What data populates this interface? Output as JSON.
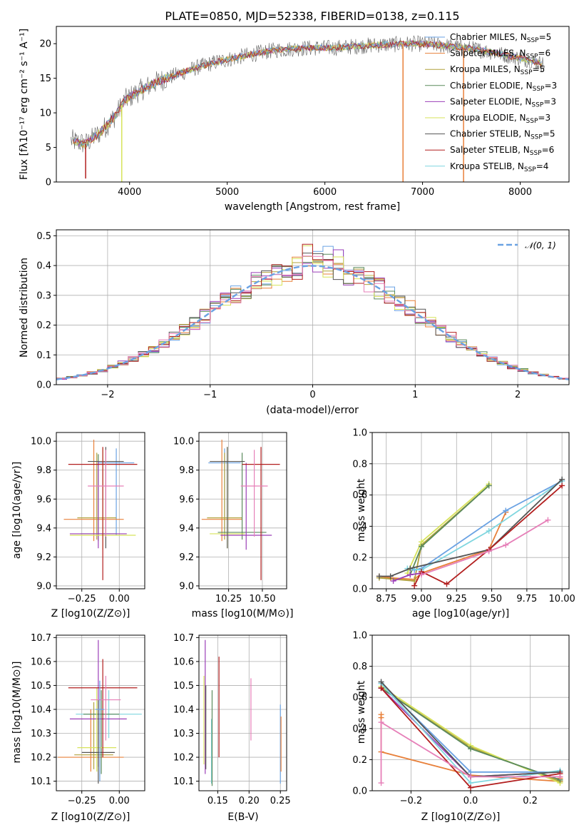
{
  "colors": {
    "chabrier_miles": "#6aa2e3",
    "salpeter_miles": "#e8803a",
    "kroupa_miles": "#b1a13c",
    "chabrier_elodie": "#5a8a5c",
    "salpeter_elodie": "#9b3fb8",
    "kroupa_elodie": "#d7e35a",
    "chabrier_stelib": "#555555",
    "salpeter_stelib": "#b21e1e",
    "kroupa_stelib": "#7fd6df",
    "pink": "#e67fb8"
  },
  "chart_data": [
    {
      "id": "spectrum",
      "type": "line",
      "title": "PLATE=0850, MJD=52338, FIBERID=0138, z=0.115",
      "xlabel": "wavelength [Angstrom, rest frame]",
      "ylabel": "Flux [fλ10⁻¹⁷ erg cm⁻² s⁻¹ A⁻¹]",
      "xlim": [
        3250,
        8500
      ],
      "ylim": [
        0,
        22.5
      ],
      "xticks": [
        "4000",
        "5000",
        "6000",
        "7000",
        "8000"
      ],
      "yticks": [
        "0",
        "5",
        "10",
        "15",
        "20"
      ],
      "grid": false,
      "legend_position": "right",
      "legend": [
        {
          "name": "Chabrier MILES",
          "n": "5",
          "color_key": "chabrier_miles"
        },
        {
          "name": "Salpeter MILES",
          "n": "6",
          "color_key": "salpeter_miles"
        },
        {
          "name": "Kroupa MILES",
          "n": "5",
          "color_key": "kroupa_miles"
        },
        {
          "name": "Chabrier ELODIE",
          "n": "3",
          "color_key": "chabrier_elodie"
        },
        {
          "name": "Salpeter ELODIE",
          "n": "3",
          "color_key": "salpeter_elodie"
        },
        {
          "name": "Kroupa ELODIE",
          "n": "3",
          "color_key": "kroupa_elodie"
        },
        {
          "name": "Chabrier STELIB",
          "n": "5",
          "color_key": "chabrier_stelib"
        },
        {
          "name": "Salpeter STELIB",
          "n": "6",
          "color_key": "salpeter_stelib"
        },
        {
          "name": "Kroupa STELIB",
          "n": "4",
          "color_key": "kroupa_stelib"
        }
      ],
      "continuum": {
        "x": [
          3400,
          3550,
          3700,
          3850,
          3950,
          4100,
          4300,
          4500,
          4700,
          4900,
          5100,
          5300,
          5500,
          5700,
          5900,
          6100,
          6300,
          6500,
          6700,
          6900,
          7100,
          7300,
          7500,
          7700,
          7900,
          8100,
          8250
        ],
        "y": [
          6.0,
          5.5,
          7.2,
          9.5,
          11.8,
          13.2,
          14.6,
          15.6,
          16.6,
          17.4,
          18.0,
          18.6,
          19.1,
          19.3,
          19.4,
          19.4,
          19.6,
          19.8,
          19.9,
          20.0,
          19.9,
          19.6,
          19.3,
          18.8,
          18.2,
          17.6,
          17.0
        ]
      },
      "dips": [
        {
          "x": 3550,
          "y": 0.5
        },
        {
          "x": 3920,
          "y": 0
        },
        {
          "x": 6800,
          "y": 0
        },
        {
          "x": 7420,
          "y": 0
        }
      ]
    },
    {
      "id": "residuals",
      "type": "bar",
      "xlabel": "(data-model)/error",
      "ylabel": "Normed distribution",
      "xlim": [
        -2.5,
        2.5
      ],
      "ylim": [
        0,
        0.52
      ],
      "xticks": [
        "−2",
        "−1",
        "0",
        "1",
        "2"
      ],
      "yticks": [
        "0.0",
        "0.1",
        "0.2",
        "0.3",
        "0.4",
        "0.5"
      ],
      "grid": true,
      "legend_position": "top-right",
      "legend": [
        {
          "name": "𝒩(0, 1)",
          "style": "dashed",
          "color_key": "chabrier_miles"
        }
      ],
      "bin_width": 0.1
    },
    {
      "id": "age_vs_Z",
      "type": "scatter",
      "xlabel": "Z [log10(Z/Z⊙)]",
      "ylabel": "age  [log10(age/yr)]",
      "xlim": [
        -0.42,
        0.17
      ],
      "ylim": [
        8.98,
        10.06
      ],
      "xticks": [
        "−0.25",
        "0.00"
      ],
      "yticks": [
        "9.0",
        "9.2",
        "9.4",
        "9.6",
        "9.8",
        "10.0"
      ],
      "grid": true,
      "points": [
        {
          "x": -0.02,
          "y": 9.85,
          "ex": 0.12,
          "eylo": 0.5,
          "eyhi": 0.1,
          "color_key": "chabrier_miles"
        },
        {
          "x": -0.17,
          "y": 9.46,
          "ex": 0.2,
          "eylo": 0.15,
          "eyhi": 0.55,
          "color_key": "salpeter_miles"
        },
        {
          "x": -0.15,
          "y": 9.47,
          "ex": 0.13,
          "eylo": 0.15,
          "eyhi": 0.45,
          "color_key": "kroupa_miles"
        },
        {
          "x": -0.14,
          "y": 9.36,
          "ex": 0.12,
          "eylo": 0.05,
          "eyhi": 0.55,
          "color_key": "chabrier_elodie"
        },
        {
          "x": -0.14,
          "y": 9.36,
          "ex": 0.19,
          "eylo": 0.1,
          "eyhi": 0.5,
          "color_key": "salpeter_elodie"
        },
        {
          "x": -0.11,
          "y": 9.35,
          "ex": 0.22,
          "eylo": 0.1,
          "eyhi": 0.6,
          "color_key": "kroupa_elodie"
        },
        {
          "x": -0.09,
          "y": 9.86,
          "ex": 0.12,
          "eylo": 0.6,
          "eyhi": 0.1,
          "color_key": "chabrier_stelib"
        },
        {
          "x": -0.11,
          "y": 9.84,
          "ex": 0.23,
          "eylo": 0.8,
          "eyhi": 0.12,
          "color_key": "salpeter_stelib"
        },
        {
          "x": -0.09,
          "y": 9.69,
          "ex": 0.12,
          "eylo": 0.35,
          "eyhi": 0.25,
          "color_key": "pink"
        }
      ]
    },
    {
      "id": "age_vs_mass",
      "type": "scatter",
      "xlabel": "mass [log10(M/M⊙)]",
      "ylabel": "",
      "xlim": [
        10.03,
        10.68
      ],
      "ylim": [
        8.98,
        10.06
      ],
      "xticks": [
        "10.25",
        "10.50"
      ],
      "yticks": [
        "9.0",
        "9.2",
        "9.4",
        "9.6",
        "9.8",
        "10.0"
      ],
      "grid": true,
      "points": [
        {
          "x": 10.22,
          "y": 9.85,
          "ex": 0.12,
          "eylo": 0.5,
          "eyhi": 0.1,
          "color_key": "chabrier_miles"
        },
        {
          "x": 10.2,
          "y": 9.46,
          "ex": 0.15,
          "eylo": 0.15,
          "eyhi": 0.55,
          "color_key": "salpeter_miles"
        },
        {
          "x": 10.22,
          "y": 9.47,
          "ex": 0.13,
          "eylo": 0.15,
          "eyhi": 0.45,
          "color_key": "kroupa_miles"
        },
        {
          "x": 10.35,
          "y": 9.37,
          "ex": 0.18,
          "eylo": 0.05,
          "eyhi": 0.55,
          "color_key": "chabrier_elodie"
        },
        {
          "x": 10.38,
          "y": 9.35,
          "ex": 0.19,
          "eylo": 0.1,
          "eyhi": 0.5,
          "color_key": "salpeter_elodie"
        },
        {
          "x": 10.24,
          "y": 9.36,
          "ex": 0.13,
          "eylo": 0.1,
          "eyhi": 0.6,
          "color_key": "kroupa_elodie"
        },
        {
          "x": 10.24,
          "y": 9.86,
          "ex": 0.13,
          "eylo": 0.6,
          "eyhi": 0.1,
          "color_key": "chabrier_stelib"
        },
        {
          "x": 10.49,
          "y": 9.84,
          "ex": 0.14,
          "eylo": 0.8,
          "eyhi": 0.12,
          "color_key": "salpeter_stelib"
        },
        {
          "x": 10.44,
          "y": 9.69,
          "ex": 0.1,
          "eylo": 0.35,
          "eyhi": 0.25,
          "color_key": "pink"
        }
      ]
    },
    {
      "id": "weight_vs_age",
      "type": "line",
      "xlabel": "age  [log10(age/yr)]",
      "ylabel": "mass weight",
      "xlim": [
        8.65,
        10.05
      ],
      "ylim": [
        0,
        1
      ],
      "xticks": [
        "8.75",
        "9.00",
        "9.25",
        "9.50",
        "9.75",
        "10.00"
      ],
      "yticks": [
        "0.0",
        "0.2",
        "0.4",
        "0.6",
        "0.8",
        "1.0"
      ],
      "grid": true,
      "series": [
        {
          "color_key": "salpeter_miles",
          "x": [
            8.7,
            8.78,
            8.95,
            9.0,
            9.48,
            9.6
          ],
          "y": [
            0.08,
            0.07,
            0.06,
            0.1,
            0.25,
            0.49
          ]
        },
        {
          "color_key": "kroupa_miles",
          "x": [
            8.7,
            8.95,
            9.0,
            9.48
          ],
          "y": [
            0.07,
            0.05,
            0.28,
            0.66
          ]
        },
        {
          "color_key": "kroupa_elodie",
          "x": [
            8.9,
            9.0,
            9.48
          ],
          "y": [
            0.1,
            0.3,
            0.67
          ]
        },
        {
          "color_key": "chabrier_elodie",
          "x": [
            8.92,
            9.0,
            9.48
          ],
          "y": [
            0.09,
            0.27,
            0.66
          ]
        },
        {
          "color_key": "salpeter_elodie",
          "x": [
            8.8,
            8.92,
            9.0
          ],
          "y": [
            0.05,
            0.09,
            0.1
          ]
        },
        {
          "color_key": "chabrier_miles",
          "x": [
            8.95,
            9.0,
            9.6,
            10.0
          ],
          "y": [
            0.12,
            0.13,
            0.5,
            0.69
          ]
        },
        {
          "color_key": "kroupa_stelib",
          "x": [
            8.9,
            9.0,
            9.48,
            10.0
          ],
          "y": [
            0.13,
            0.12,
            0.37,
            0.69
          ]
        },
        {
          "color_key": "chabrier_stelib",
          "x": [
            8.7,
            8.78,
            8.92,
            9.48,
            10.0
          ],
          "y": [
            0.08,
            0.08,
            0.13,
            0.25,
            0.7
          ]
        },
        {
          "color_key": "salpeter_stelib",
          "x": [
            8.95,
            9.0,
            9.18,
            9.48,
            10.0
          ],
          "y": [
            0.02,
            0.11,
            0.03,
            0.25,
            0.66
          ]
        },
        {
          "color_key": "pink",
          "x": [
            9.0,
            9.48,
            9.6,
            9.9
          ],
          "y": [
            0.09,
            0.24,
            0.28,
            0.44
          ]
        }
      ]
    },
    {
      "id": "mass_vs_Z",
      "type": "scatter",
      "xlabel": "Z [log10(Z/Z⊙)]",
      "ylabel": "mass [log10(M/M⊙)]",
      "xlim": [
        -0.42,
        0.17
      ],
      "ylim": [
        10.06,
        10.71
      ],
      "xticks": [
        "−0.25",
        "0.00"
      ],
      "yticks": [
        "10.1",
        "10.2",
        "10.3",
        "10.4",
        "10.5",
        "10.6",
        "10.7"
      ],
      "grid": true,
      "points": [
        {
          "x": -0.07,
          "y": 10.38,
          "ex": 0.22,
          "eylo": 0.1,
          "eyhi": 0.1,
          "color_key": "kroupa_stelib"
        },
        {
          "x": -0.19,
          "y": 10.2,
          "ex": 0.22,
          "eylo": 0.06,
          "eyhi": 0.2,
          "color_key": "salpeter_miles"
        },
        {
          "x": -0.17,
          "y": 10.21,
          "ex": 0.13,
          "eylo": 0.06,
          "eyhi": 0.22,
          "color_key": "kroupa_miles"
        },
        {
          "x": -0.12,
          "y": 10.38,
          "ex": 0.12,
          "eylo": 0.25,
          "eyhi": 0.1,
          "color_key": "chabrier_elodie"
        },
        {
          "x": -0.14,
          "y": 10.36,
          "ex": 0.19,
          "eylo": 0.2,
          "eyhi": 0.33,
          "color_key": "salpeter_elodie"
        },
        {
          "x": -0.15,
          "y": 10.24,
          "ex": 0.13,
          "eylo": 0.1,
          "eyhi": 0.25,
          "color_key": "kroupa_elodie"
        },
        {
          "x": -0.14,
          "y": 10.22,
          "ex": 0.11,
          "eylo": 0.13,
          "eyhi": 0.22,
          "color_key": "chabrier_stelib"
        },
        {
          "x": -0.11,
          "y": 10.49,
          "ex": 0.23,
          "eylo": 0.29,
          "eyhi": 0.12,
          "color_key": "salpeter_stelib"
        },
        {
          "x": -0.09,
          "y": 10.44,
          "ex": 0.1,
          "eylo": 0.17,
          "eyhi": 0.1,
          "color_key": "pink"
        },
        {
          "x": -0.13,
          "y": 10.4,
          "ex": 0.03,
          "eylo": 0.3,
          "eyhi": 0.12,
          "color_key": "chabrier_miles"
        }
      ]
    },
    {
      "id": "mass_vs_ebv",
      "type": "scatter",
      "xlabel": "E(B-V)",
      "ylabel": "",
      "xlim": [
        0.12,
        0.26
      ],
      "ylim": [
        10.06,
        10.71
      ],
      "xticks": [
        "0.15",
        "0.20",
        "0.25"
      ],
      "yticks": [
        "10.1",
        "10.2",
        "10.3",
        "10.4",
        "10.5",
        "10.6",
        "10.7"
      ],
      "grid": true,
      "points": [
        {
          "x": 0.128,
          "y": 10.38,
          "eylo": 0.21,
          "eyhi": 0.16,
          "color_key": "kroupa_elodie"
        },
        {
          "x": 0.13,
          "y": 10.55,
          "eylo": 0.42,
          "eyhi": 0.14,
          "color_key": "salpeter_elodie"
        },
        {
          "x": 0.131,
          "y": 10.34,
          "eylo": 0.19,
          "eyhi": 0.16,
          "color_key": "chabrier_stelib"
        },
        {
          "x": 0.14,
          "y": 10.22,
          "eylo": 0.13,
          "eyhi": 0.14,
          "color_key": "kroupa_stelib"
        },
        {
          "x": 0.141,
          "y": 10.28,
          "eylo": 0.2,
          "eyhi": 0.2,
          "color_key": "chabrier_elodie"
        },
        {
          "x": 0.152,
          "y": 10.43,
          "eylo": 0.23,
          "eyhi": 0.19,
          "color_key": "salpeter_stelib"
        },
        {
          "x": 0.203,
          "y": 10.44,
          "eylo": 0.17,
          "eyhi": 0.09,
          "color_key": "pink"
        },
        {
          "x": 0.25,
          "y": 10.26,
          "eylo": 0.17,
          "eyhi": 0.16,
          "color_key": "chabrier_miles"
        },
        {
          "x": 0.251,
          "y": 10.25,
          "eylo": 0.11,
          "eyhi": 0.12,
          "color_key": "salpeter_miles"
        }
      ]
    },
    {
      "id": "weight_vs_Z",
      "type": "line",
      "xlabel": "Z [log10(Z/Z⊙)]",
      "ylabel": "mass weight",
      "xlim": [
        -0.33,
        0.33
      ],
      "ylim": [
        0,
        1
      ],
      "xticks": [
        "−0.2",
        "0.0",
        "0.2"
      ],
      "yticks": [
        "0.0",
        "0.2",
        "0.4",
        "0.6",
        "0.8",
        "1.0"
      ],
      "grid": true,
      "series": [
        {
          "color_key": "salpeter_miles",
          "x": [
            -0.3,
            -0.3,
            -0.3,
            0.0,
            0.3,
            0.3
          ],
          "y": [
            0.49,
            0.47,
            0.25,
            0.1,
            0.06,
            0.08
          ]
        },
        {
          "color_key": "kroupa_miles",
          "x": [
            -0.3,
            0.0,
            0.3
          ],
          "y": [
            0.66,
            0.28,
            0.06
          ]
        },
        {
          "color_key": "kroupa_elodie",
          "x": [
            -0.3,
            0.0,
            0.3
          ],
          "y": [
            0.67,
            0.29,
            0.05
          ]
        },
        {
          "color_key": "chabrier_elodie",
          "x": [
            -0.3,
            0.0,
            0.3
          ],
          "y": [
            0.66,
            0.27,
            0.07
          ]
        },
        {
          "color_key": "salpeter_elodie",
          "x": [
            -0.3,
            0.0,
            0.3
          ],
          "y": [
            0.66,
            0.09,
            0.12
          ]
        },
        {
          "color_key": "chabrier_miles",
          "x": [
            -0.3,
            0.0,
            0.3
          ],
          "y": [
            0.69,
            0.12,
            0.12
          ]
        },
        {
          "color_key": "kroupa_stelib",
          "x": [
            -0.3,
            0.0,
            0.3
          ],
          "y": [
            0.69,
            0.05,
            0.13
          ]
        },
        {
          "color_key": "chabrier_stelib",
          "x": [
            -0.3,
            0.0,
            0.3
          ],
          "y": [
            0.7,
            0.09,
            0.12
          ]
        },
        {
          "color_key": "salpeter_stelib",
          "x": [
            -0.3,
            0.0,
            0.3
          ],
          "y": [
            0.66,
            0.02,
            0.11
          ]
        },
        {
          "color_key": "pink",
          "x": [
            -0.3,
            -0.3,
            0.0,
            0.3
          ],
          "y": [
            0.05,
            0.44,
            0.09,
            0.09
          ]
        }
      ]
    }
  ]
}
